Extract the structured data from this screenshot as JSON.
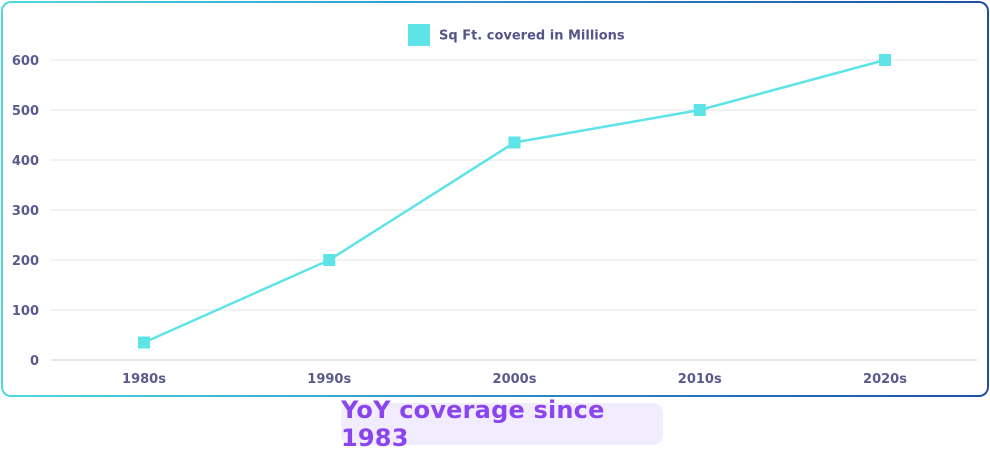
{
  "caption": "YoY coverage since 1983",
  "colors": {
    "series": "#5ee3e6",
    "caption_text": "#8b45ef",
    "caption_bg": "#f1ecfe",
    "tick_text": "#5a5a8e",
    "gridline": "#e6e6e6"
  },
  "chart_data": {
    "type": "line",
    "categories": [
      "1980s",
      "1990s",
      "2000s",
      "2010s",
      "2020s"
    ],
    "series": [
      {
        "name": "Sq Ft. covered in Millions",
        "values": [
          35,
          200,
          435,
          500,
          600
        ]
      }
    ],
    "ylim": [
      0,
      600
    ],
    "yticks": [
      0,
      100,
      200,
      300,
      400,
      500,
      600
    ],
    "grid": true,
    "legend": "top-center",
    "marker": "square"
  }
}
